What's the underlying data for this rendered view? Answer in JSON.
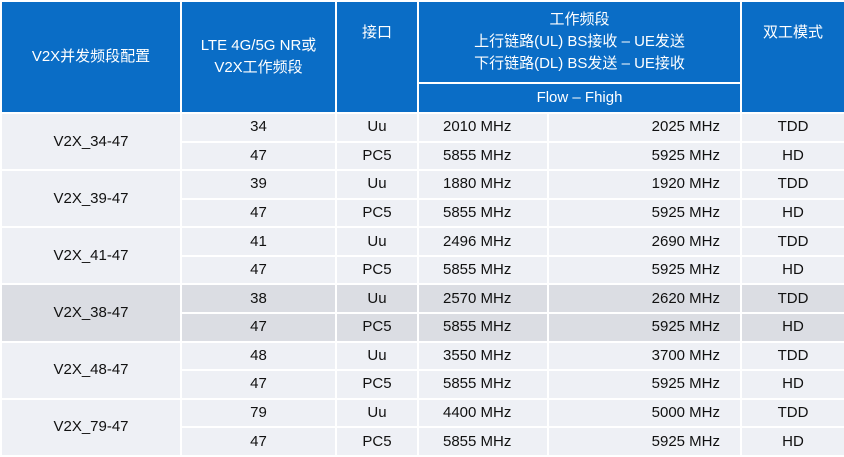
{
  "header": {
    "config": "V2X并发频段配置",
    "band_line1": "LTE 4G/5G NR或",
    "band_line2": "V2X工作频段",
    "interface": "接口",
    "freq_title": "工作频段",
    "freq_ul": "上行链路(UL) BS接收 – UE发送",
    "freq_dl": "下行链路(DL) BS发送 – UE接收",
    "freq_range": "Flow – Fhigh",
    "duplex": "双工模式"
  },
  "groups": [
    {
      "config": "V2X_34-47",
      "shade": "light",
      "rows": [
        {
          "band": "34",
          "interface": "Uu",
          "flow": "2010 MHz",
          "fhigh": "2025 MHz",
          "duplex": "TDD"
        },
        {
          "band": "47",
          "interface": "PC5",
          "flow": "5855 MHz",
          "fhigh": "5925 MHz",
          "duplex": "HD"
        }
      ]
    },
    {
      "config": "V2X_39-47",
      "shade": "light",
      "rows": [
        {
          "band": "39",
          "interface": "Uu",
          "flow": "1880 MHz",
          "fhigh": "1920 MHz",
          "duplex": "TDD"
        },
        {
          "band": "47",
          "interface": "PC5",
          "flow": "5855 MHz",
          "fhigh": "5925 MHz",
          "duplex": "HD"
        }
      ]
    },
    {
      "config": "V2X_41-47",
      "shade": "light",
      "rows": [
        {
          "band": "41",
          "interface": "Uu",
          "flow": "2496 MHz",
          "fhigh": "2690 MHz",
          "duplex": "TDD"
        },
        {
          "band": "47",
          "interface": "PC5",
          "flow": "5855 MHz",
          "fhigh": "5925 MHz",
          "duplex": "HD"
        }
      ]
    },
    {
      "config": "V2X_38-47",
      "shade": "dark",
      "rows": [
        {
          "band": "38",
          "interface": "Uu",
          "flow": "2570 MHz",
          "fhigh": "2620 MHz",
          "duplex": "TDD"
        },
        {
          "band": "47",
          "interface": "PC5",
          "flow": "5855 MHz",
          "fhigh": "5925 MHz",
          "duplex": "HD"
        }
      ]
    },
    {
      "config": "V2X_48-47",
      "shade": "light",
      "rows": [
        {
          "band": "48",
          "interface": "Uu",
          "flow": "3550 MHz",
          "fhigh": "3700 MHz",
          "duplex": "TDD"
        },
        {
          "band": "47",
          "interface": "PC5",
          "flow": "5855 MHz",
          "fhigh": "5925 MHz",
          "duplex": "HD"
        }
      ]
    },
    {
      "config": "V2X_79-47",
      "shade": "light",
      "rows": [
        {
          "band": "79",
          "interface": "Uu",
          "flow": "4400 MHz",
          "fhigh": "5000 MHz",
          "duplex": "TDD"
        },
        {
          "band": "47",
          "interface": "PC5",
          "flow": "5855 MHz",
          "fhigh": "5925 MHz",
          "duplex": "HD"
        }
      ]
    }
  ],
  "colors": {
    "header_bg": "#0a6dc6",
    "row_light": "#eef0f5",
    "row_dark": "#dbdde3"
  }
}
